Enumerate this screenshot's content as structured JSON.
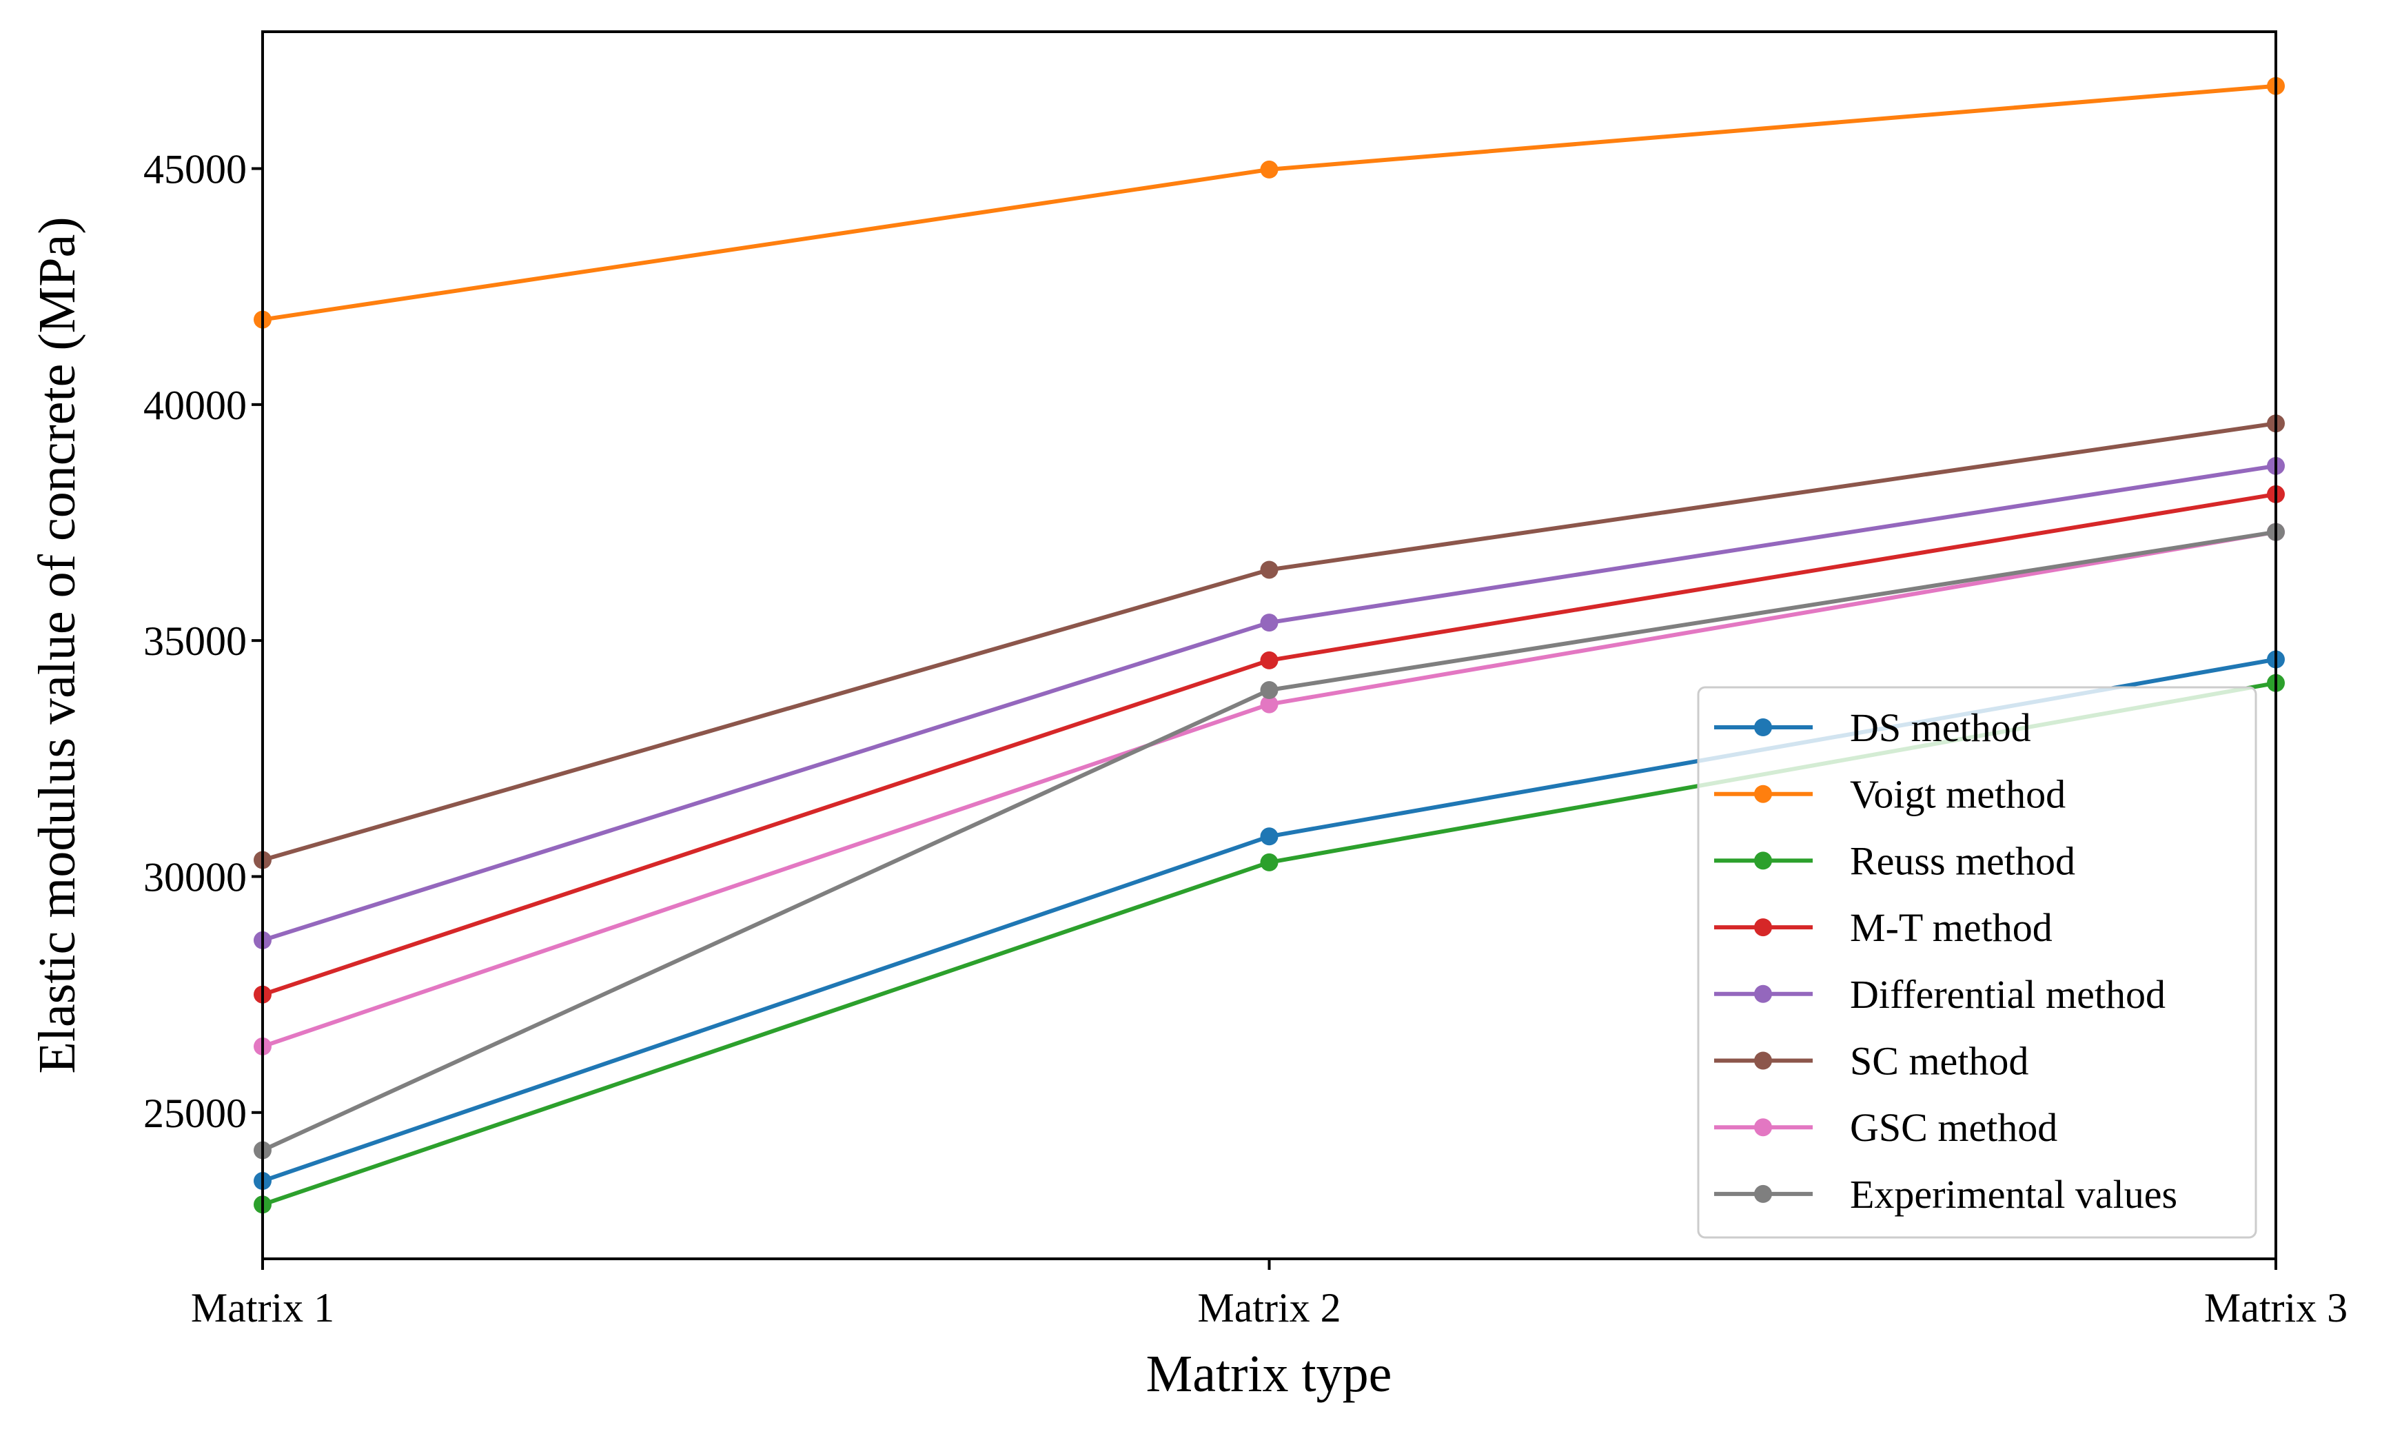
{
  "chart_data": {
    "type": "line",
    "title": "",
    "xlabel": "Matrix type",
    "ylabel": "Elastic modulus value of concrete (MPa)",
    "categories": [
      "Matrix 1",
      "Matrix 2",
      "Matrix 3"
    ],
    "ylim": [
      21900,
      47900
    ],
    "yticks": [
      25000,
      30000,
      35000,
      40000,
      45000
    ],
    "ytick_labels": [
      "25000",
      "30000",
      "35000",
      "40000",
      "45000"
    ],
    "grid": false,
    "legend_position": "lower-right",
    "series": [
      {
        "name": "DS method",
        "color": "#1f77b4",
        "values": [
          23550,
          30850,
          34600
        ]
      },
      {
        "name": "Voigt method",
        "color": "#ff7f0e",
        "values": [
          41800,
          44980,
          46750
        ]
      },
      {
        "name": "Reuss method",
        "color": "#2ca02c",
        "values": [
          23050,
          30300,
          34100
        ]
      },
      {
        "name": "M-T method",
        "color": "#d62728",
        "values": [
          27500,
          34580,
          38100
        ]
      },
      {
        "name": "Differential method",
        "color": "#9467bd",
        "values": [
          28650,
          35380,
          38700
        ]
      },
      {
        "name": "SC method",
        "color": "#8c564b",
        "values": [
          30350,
          36500,
          39600
        ]
      },
      {
        "name": "GSC method",
        "color": "#e377c2",
        "values": [
          26400,
          33650,
          37300
        ]
      },
      {
        "name": "Experimental values",
        "color": "#7f7f7f",
        "values": [
          24200,
          33950,
          37300
        ]
      }
    ]
  }
}
